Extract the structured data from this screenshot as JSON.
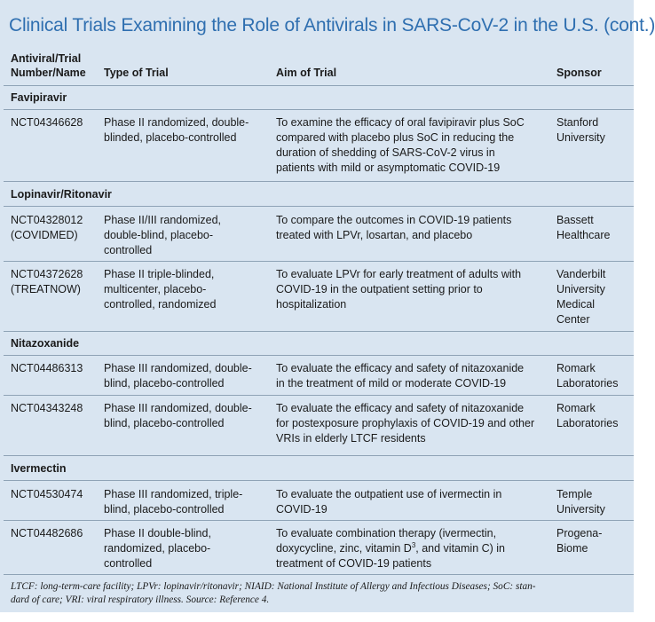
{
  "title": "Clinical Trials Examining the Role of Antivirals in SARS-CoV-2 in the U.S. (cont.)",
  "headers": {
    "trial_line1": "Antiviral/Trial",
    "trial_line2": "Number/Name",
    "type": "Type of Trial",
    "aim": "Aim of Trial",
    "sponsor": "Sponsor"
  },
  "categories": {
    "favipiravir": "Favipiravir",
    "lopinavir": "Lopinavir/Ritonavir",
    "nitazoxanide": "Nitazoxanide",
    "ivermectin": "Ivermectin"
  },
  "rows": [
    {
      "number": [
        "NCT04346628"
      ],
      "type": [
        "Phase II randomized, double-",
        "blinded, placebo-controlled"
      ],
      "aim": [
        "To examine the efficacy of oral favipiravir plus SoC",
        "compared with placebo plus SoC in reducing the",
        "duration of shedding of SARS-CoV-2 virus in",
        "patients with mild or asymptomatic COVID-19"
      ],
      "sponsor": [
        "Stanford",
        "University"
      ]
    },
    {
      "number": [
        "NCT04328012",
        "(COVIDMED)"
      ],
      "type": [
        "Phase II/III randomized,",
        "double-blind, placebo-",
        "controlled"
      ],
      "aim": [
        "To compare the outcomes in COVID-19 patients",
        "treated with LPVr, losartan, and placebo"
      ],
      "sponsor": [
        "Bassett",
        "Healthcare"
      ]
    },
    {
      "number": [
        "NCT04372628",
        "(TREATNOW)"
      ],
      "type": [
        "Phase II triple-blinded,",
        "multicenter, placebo-",
        "controlled, randomized"
      ],
      "aim": [
        "To evaluate LPVr for early treatment of adults with",
        "COVID-19 in the outpatient setting prior to",
        "hospitalization"
      ],
      "sponsor": [
        "Vanderbilt",
        "University",
        "Medical",
        "Center"
      ]
    },
    {
      "number": [
        "NCT04486313"
      ],
      "type": [
        "Phase III randomized, double-",
        "blind, placebo-controlled"
      ],
      "aim": [
        "To evaluate the efficacy and safety of nitazoxanide",
        "in the treatment of mild or moderate COVID-19"
      ],
      "sponsor": [
        "Romark",
        "Laboratories"
      ]
    },
    {
      "number": [
        "NCT04343248"
      ],
      "type": [
        "Phase III randomized, double-",
        "blind, placebo-controlled"
      ],
      "aim": [
        "To evaluate the efficacy and safety of nitazoxanide",
        "for postexposure prophylaxis of COVID-19 and other",
        "VRIs in elderly LTCF residents"
      ],
      "sponsor": [
        "Romark",
        "Laboratories"
      ]
    },
    {
      "number": [
        "NCT04530474"
      ],
      "type": [
        "Phase III randomized, triple-",
        "blind, placebo-controlled"
      ],
      "aim": [
        "To evaluate the outpatient use of ivermectin in",
        "COVID-19"
      ],
      "sponsor": [
        "Temple",
        "University"
      ]
    },
    {
      "number": [
        "NCT04482686"
      ],
      "type": [
        "Phase II double-blind,",
        "randomized, placebo-",
        "controlled"
      ],
      "aim": [
        "To evaluate combination therapy (ivermectin,",
        "doxycycline, zinc, vitamin D",
        "3",
        ", and vitamin C) in",
        "treatment of COVID-19 patients"
      ],
      "sponsor": [
        "Progena-",
        "Biome"
      ]
    }
  ],
  "footnote": {
    "line1": "LTCF: long-term-care facility; LPVr: lopinavir/ritonavir; NIAID: National Institute of Allergy and Infectious Diseases; SoC: stan-",
    "line2": "dard of care; VRI: viral respiratory illness. Source: Reference 4."
  }
}
